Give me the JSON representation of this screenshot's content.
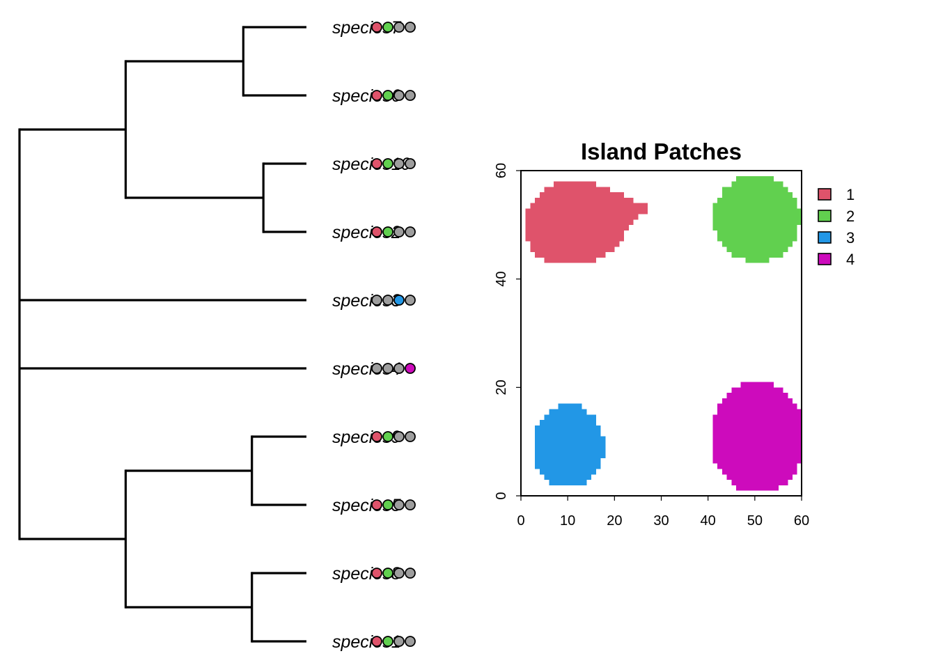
{
  "palette": {
    "1": "#DF536B",
    "2": "#61D04F",
    "3": "#2297E6",
    "4": "#CD0BBC",
    "absent": "#9E9E9E"
  },
  "chart_data": [
    {
      "type": "dendrogram",
      "tips": [
        {
          "label": "species7",
          "presence": [
            1,
            1,
            0,
            0
          ]
        },
        {
          "label": "species6",
          "presence": [
            1,
            1,
            0,
            0
          ]
        },
        {
          "label": "species10",
          "presence": [
            1,
            1,
            0,
            0
          ]
        },
        {
          "label": "species2",
          "presence": [
            1,
            1,
            0,
            0
          ]
        },
        {
          "label": "species3",
          "presence": [
            0,
            0,
            1,
            0
          ]
        },
        {
          "label": "species4",
          "presence": [
            0,
            0,
            0,
            1
          ]
        },
        {
          "label": "species9",
          "presence": [
            1,
            1,
            0,
            0
          ]
        },
        {
          "label": "species5",
          "presence": [
            1,
            1,
            0,
            0
          ]
        },
        {
          "label": "species8",
          "presence": [
            1,
            1,
            0,
            0
          ]
        },
        {
          "label": "species1",
          "presence": [
            1,
            1,
            0,
            0
          ]
        }
      ],
      "tree": {
        "h": 0,
        "c": [
          {
            "h": 0.37,
            "c": [
              {
                "h": 0.78,
                "c": [
                  {
                    "tip": 0
                  },
                  {
                    "tip": 1
                  }
                ]
              },
              {
                "h": 0.85,
                "c": [
                  {
                    "tip": 2
                  },
                  {
                    "tip": 3
                  }
                ]
              }
            ]
          },
          {
            "tip": 4
          },
          {
            "tip": 5
          },
          {
            "h": 0.37,
            "c": [
              {
                "h": 0.81,
                "c": [
                  {
                    "tip": 6
                  },
                  {
                    "tip": 7
                  }
                ]
              },
              {
                "h": 0.81,
                "c": [
                  {
                    "tip": 8
                  },
                  {
                    "tip": 9
                  }
                ]
              }
            ]
          }
        ]
      }
    },
    {
      "type": "raster-map",
      "title": "Island Patches",
      "xlim": [
        0,
        60
      ],
      "ylim": [
        0,
        60
      ],
      "xticks": [
        0,
        10,
        20,
        30,
        40,
        50,
        60
      ],
      "yticks": [
        0,
        20,
        40,
        60
      ],
      "legend": {
        "position": "right",
        "entries": [
          "1",
          "2",
          "3",
          "4"
        ]
      },
      "patches": [
        {
          "id": "1",
          "shape": "polygon",
          "points": [
            [
              1.5,
              52.5
            ],
            [
              4.5,
              56
            ],
            [
              7.5,
              58
            ],
            [
              12,
              58.5
            ],
            [
              16.5,
              57.5
            ],
            [
              21,
              56
            ],
            [
              24.5,
              54.5
            ],
            [
              27,
              53.5
            ],
            [
              27,
              52.5
            ],
            [
              25,
              51.5
            ],
            [
              22,
              48
            ],
            [
              19.5,
              45
            ],
            [
              16,
              43.5
            ],
            [
              11,
              43
            ],
            [
              6,
              43.3
            ],
            [
              3,
              44.5
            ],
            [
              1.5,
              47
            ]
          ]
        },
        {
          "id": "2",
          "shape": "ellipse",
          "cx": 50.4,
          "cy": 51.2,
          "rx": 9.3,
          "ry": 8.1
        },
        {
          "id": "3",
          "shape": "ellipse",
          "cx": 10.1,
          "cy": 9.2,
          "rx": 7.6,
          "ry": 7.7
        },
        {
          "id": "4",
          "shape": "ellipse",
          "cx": 50.7,
          "cy": 10.8,
          "rx": 10.2,
          "ry": 10.3
        }
      ]
    }
  ]
}
